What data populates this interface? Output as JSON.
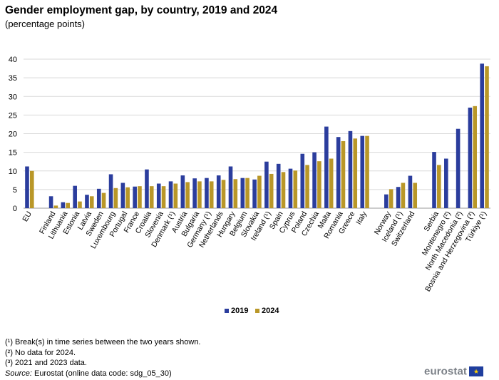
{
  "title": "Gender employment gap, by country, 2019 and 2024",
  "subtitle": "(percentage points)",
  "chart_data": {
    "type": "bar",
    "yticks": [
      "0",
      "5",
      "10",
      "15",
      "20",
      "25",
      "30",
      "35",
      "40"
    ],
    "ylim": [
      0,
      40
    ],
    "grid": true,
    "legend_placement": "bottom-center",
    "categories": [
      "EU",
      "",
      "Finland",
      "Lithuania",
      "Estonia",
      "Latvia",
      "Sweden",
      "Luxembourg",
      "Portugal",
      "France",
      "Croatia",
      "Slovenia",
      "Denmark (¹)",
      "Austria",
      "Bulgaria",
      "Germany (¹)",
      "Netherlands",
      "Hungary",
      "Belgium",
      "Slovakia",
      "Ireland (¹)",
      "Spain",
      "Cyprus",
      "Poland",
      "Czechia",
      "Malta",
      "Romania",
      "Greece",
      "Italy",
      "",
      "Norway",
      "Iceland (¹)",
      "Switzerland",
      "",
      "Serbia",
      "Montenegro (²)",
      "North Macedonia (²)",
      "Bosnia and Herzegovina (³)",
      "Türkiye (¹)"
    ],
    "series": [
      {
        "name": "2019",
        "color": "#2b3d9d",
        "values": [
          11.2,
          null,
          3.2,
          1.6,
          6.0,
          3.6,
          5.2,
          9.1,
          6.8,
          5.8,
          10.4,
          6.6,
          7.2,
          8.8,
          8.0,
          8.1,
          8.8,
          11.2,
          8.1,
          7.7,
          12.5,
          11.9,
          10.6,
          14.6,
          15.0,
          21.9,
          19.1,
          20.7,
          19.4,
          null,
          3.7,
          5.7,
          8.7,
          null,
          15.1,
          13.3,
          21.3,
          27.0,
          38.8
        ]
      },
      {
        "name": "2024",
        "color": "#b99728",
        "values": [
          10.0,
          null,
          0.7,
          1.4,
          1.8,
          3.2,
          4.1,
          5.4,
          5.6,
          5.9,
          5.9,
          5.9,
          6.6,
          7.0,
          7.2,
          7.2,
          7.6,
          7.8,
          8.1,
          8.7,
          9.2,
          9.7,
          10.1,
          11.6,
          12.6,
          13.3,
          18.0,
          18.7,
          19.4,
          null,
          5.1,
          6.8,
          6.8,
          null,
          11.6,
          null,
          null,
          27.4,
          38.1
        ]
      }
    ]
  },
  "footnotes": [
    "(¹) Break(s) in time series between the two years shown.",
    "(²) No data for 2024.",
    "(³) 2021 and 2023 data."
  ],
  "source_label": "Source:",
  "source_text": " Eurostat (online data code: sdg_05_30)",
  "logo_text": "eurostat",
  "logo_stars": "★"
}
